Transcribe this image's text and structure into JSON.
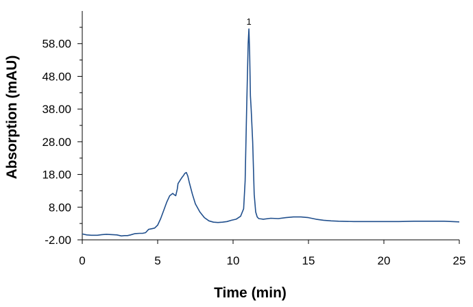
{
  "chart_data": {
    "type": "line",
    "title": "",
    "xlabel": "Time (min)",
    "ylabel": "Absorption (mAU)",
    "xlim": [
      0,
      25
    ],
    "ylim": [
      -2,
      68
    ],
    "x_ticks": [
      "0",
      "5",
      "10",
      "15",
      "20",
      "25"
    ],
    "y_ticks": [
      "-2.00",
      "8.00",
      "18.00",
      "28.00",
      "38.00",
      "48.00",
      "58.00"
    ],
    "grid": false,
    "legend": "none",
    "line_color": "#1f4e8c",
    "annotations": [
      {
        "text": "1",
        "x": 11.05,
        "y": 63
      }
    ],
    "series": [
      {
        "x": [
          0,
          0.3,
          0.6,
          1,
          1.3,
          1.6,
          2,
          2.3,
          2.6,
          2.8,
          3,
          3.2,
          3.5,
          3.8,
          4,
          4.2,
          4.4,
          4.6,
          4.8,
          5,
          5.2,
          5.4,
          5.6,
          5.8,
          6,
          6.1,
          6.2,
          6.3,
          6.35,
          6.5,
          6.6,
          6.7,
          6.8,
          6.9,
          7.0,
          7.1,
          7.3,
          7.5,
          7.8,
          8.1,
          8.4,
          8.7,
          9,
          9.3,
          9.6,
          9.9,
          10.2,
          10.5,
          10.7,
          10.8,
          10.9,
          11.0,
          11.05,
          11.1,
          11.15,
          11.2,
          11.3,
          11.4,
          11.5,
          11.6,
          11.7,
          12,
          12.5,
          13,
          13.5,
          14,
          14.5,
          15,
          15.5,
          16,
          16.5,
          17,
          18,
          19,
          20,
          21,
          22,
          23,
          24,
          25
        ],
        "y": [
          -0.2,
          -0.5,
          -0.6,
          -0.6,
          -0.4,
          -0.3,
          -0.4,
          -0.5,
          -0.8,
          -0.7,
          -0.7,
          -0.5,
          -0.1,
          0,
          0,
          0.2,
          1.2,
          1.4,
          1.6,
          2.5,
          4.5,
          7,
          9.5,
          11.5,
          12.2,
          11.8,
          11.5,
          13.5,
          15.2,
          16.3,
          17.0,
          17.6,
          18.3,
          18.6,
          17.5,
          15.5,
          12,
          9,
          6.5,
          4.8,
          3.8,
          3.4,
          3.3,
          3.4,
          3.6,
          4.0,
          4.3,
          5.2,
          7.5,
          16,
          38,
          58,
          62.5,
          55,
          42,
          38,
          28,
          12,
          6.5,
          5.0,
          4.5,
          4.3,
          4.6,
          4.5,
          4.8,
          5.0,
          5.0,
          4.8,
          4.3,
          4.0,
          3.8,
          3.7,
          3.6,
          3.6,
          3.6,
          3.6,
          3.7,
          3.7,
          3.7,
          3.5
        ]
      }
    ]
  }
}
